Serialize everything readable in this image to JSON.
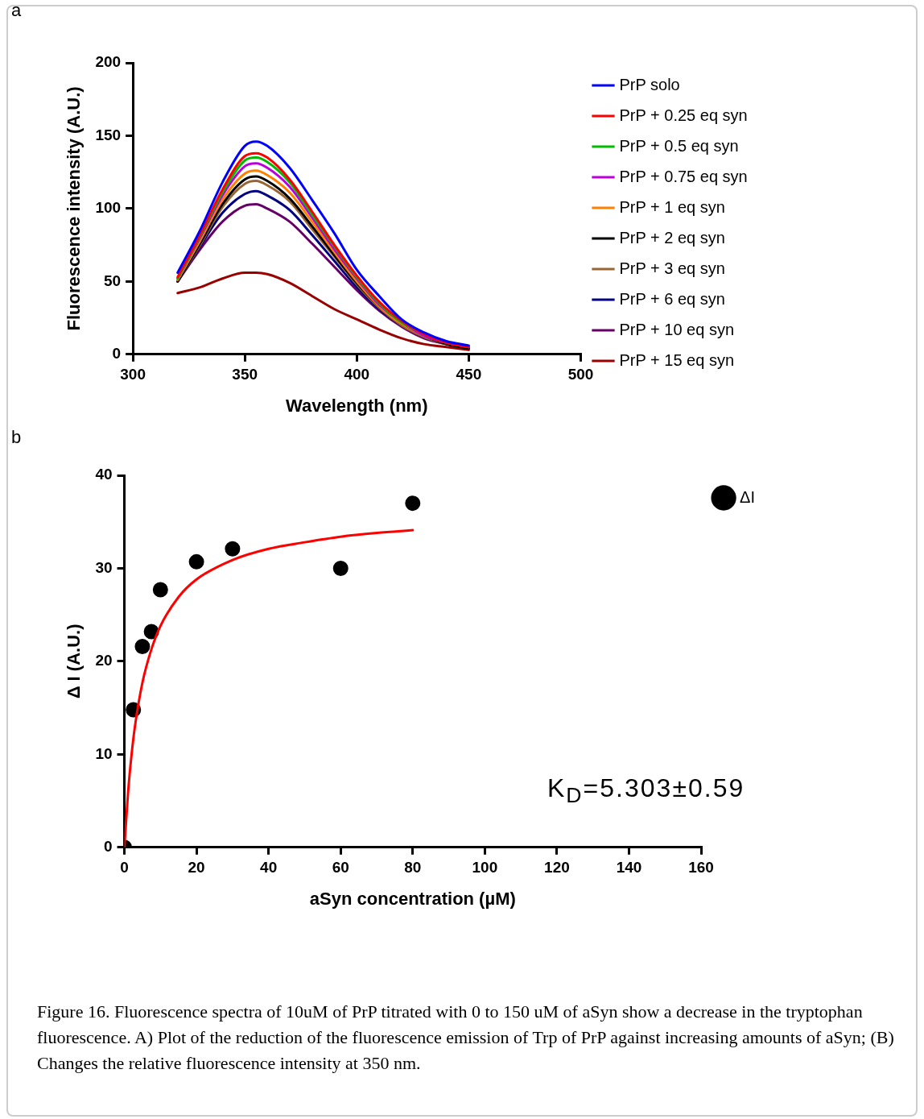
{
  "chart_data": [
    {
      "type": "line",
      "xlabel": "Wavelength (nm)",
      "ylabel": "Fluorescence intensity (A.U.)",
      "annotations": [
        "a"
      ],
      "x": [
        320,
        330,
        340,
        350,
        355,
        360,
        370,
        380,
        390,
        400,
        410,
        420,
        430,
        440,
        450
      ],
      "xlim": [
        300,
        500
      ],
      "xticks": [
        300,
        350,
        400,
        450,
        500
      ],
      "ylim": [
        0,
        200
      ],
      "yticks": [
        0,
        50,
        100,
        150,
        200
      ],
      "grid": false,
      "legend": "right",
      "marker": "none",
      "line_style": "solid",
      "series": [
        {
          "name": "PrP solo",
          "color": "#0000ff",
          "values": [
            56,
            85,
            118,
            143,
            146,
            143,
            128,
            106,
            83,
            58,
            40,
            24,
            15,
            9,
            6
          ]
        },
        {
          "name": "PrP + 0.25 eq syn",
          "color": "#ff0000",
          "values": [
            53,
            82,
            113,
            136,
            138,
            135,
            120,
            98,
            75,
            54,
            36,
            23,
            14,
            8,
            5
          ]
        },
        {
          "name": "PrP + 0.5 eq syn",
          "color": "#00bb00",
          "values": [
            52,
            81,
            111,
            133,
            135,
            132,
            118,
            96,
            74,
            53,
            35,
            22,
            14,
            null,
            null
          ]
        },
        {
          "name": "PrP + 0.75 eq syn",
          "color": "#bb00dd",
          "values": [
            52,
            80,
            109,
            129,
            131,
            128,
            115,
            94,
            72,
            52,
            34,
            22,
            13,
            8,
            5
          ]
        },
        {
          "name": "PrP + 1 eq syn",
          "color": "#ff8000",
          "values": [
            51,
            78,
            106,
            124,
            126,
            123,
            111,
            91,
            70,
            50,
            33,
            21,
            13,
            8,
            5
          ]
        },
        {
          "name": "PrP + 2 eq syn",
          "color": "#000000",
          "values": [
            50,
            76,
            103,
            120,
            122,
            119,
            107,
            88,
            68,
            49,
            33,
            21,
            13,
            7,
            4
          ]
        },
        {
          "name": "PrP + 3 eq syn",
          "color": "#996633",
          "values": [
            50,
            75,
            101,
            117,
            119,
            116,
            105,
            86,
            67,
            48,
            32,
            20,
            12,
            7,
            4
          ]
        },
        {
          "name": "PrP + 6 eq syn",
          "color": "#000080",
          "values": [
            50,
            74,
            97,
            110,
            112,
            109,
            99,
            82,
            64,
            46,
            31,
            20,
            12,
            null,
            null
          ]
        },
        {
          "name": "PrP + 10 eq syn",
          "color": "#660066",
          "values": [
            50,
            72,
            91,
            102,
            103,
            100,
            91,
            76,
            60,
            44,
            30,
            19,
            11,
            7,
            4
          ]
        },
        {
          "name": "PrP + 15 eq syn",
          "color": "#990000",
          "values": [
            42,
            46,
            52,
            56,
            56,
            55,
            49,
            40,
            31,
            24,
            17,
            11,
            7,
            5,
            3
          ]
        }
      ]
    },
    {
      "type": "scatter",
      "xlabel": "aSyn concentration (µM)",
      "ylabel": "Δ I (A.U.)",
      "annotations": [
        "b",
        "K$_{D}$=5.303±0.59",
        "Figure 16. Fluorescence spectra of 10uM of PrP titrated with 0 to 150 uM of aSyn show a decrease in the tryptophan fluorescence. A) Plot of the reduction of the fluorescence emission of Trp of PrP against increasing amounts of aSyn; (B) Changes the relative fluorescence intensity at 350 nm."
      ],
      "xlim": [
        0,
        160
      ],
      "xticks": [
        0,
        20,
        40,
        60,
        80,
        100,
        120,
        140,
        160
      ],
      "ylim": [
        0,
        40
      ],
      "yticks": [
        0,
        10,
        20,
        30,
        40
      ],
      "grid": false,
      "legend": "top right",
      "marker": "circle",
      "series": [
        {
          "name": "ΔI",
          "type": "scatter",
          "color": "#000000",
          "x": [
            0,
            2.5,
            5,
            7.5,
            10,
            20,
            30,
            60,
            80
          ],
          "values": [
            0,
            14.8,
            21.6,
            23.2,
            27.7,
            30.7,
            32.1,
            30.0,
            37.0
          ]
        },
        {
          "type": "line",
          "color": "#ff0000",
          "marker": "none",
          "x": [
            0,
            1,
            2,
            3,
            5,
            7.5,
            10,
            15,
            20,
            30,
            40,
            50,
            60,
            70,
            80
          ],
          "values": [
            0,
            5.8,
            10.0,
            13.2,
            17.7,
            21.3,
            23.8,
            26.9,
            28.8,
            30.9,
            32.1,
            32.8,
            33.4,
            33.8,
            34.1
          ]
        }
      ]
    }
  ]
}
